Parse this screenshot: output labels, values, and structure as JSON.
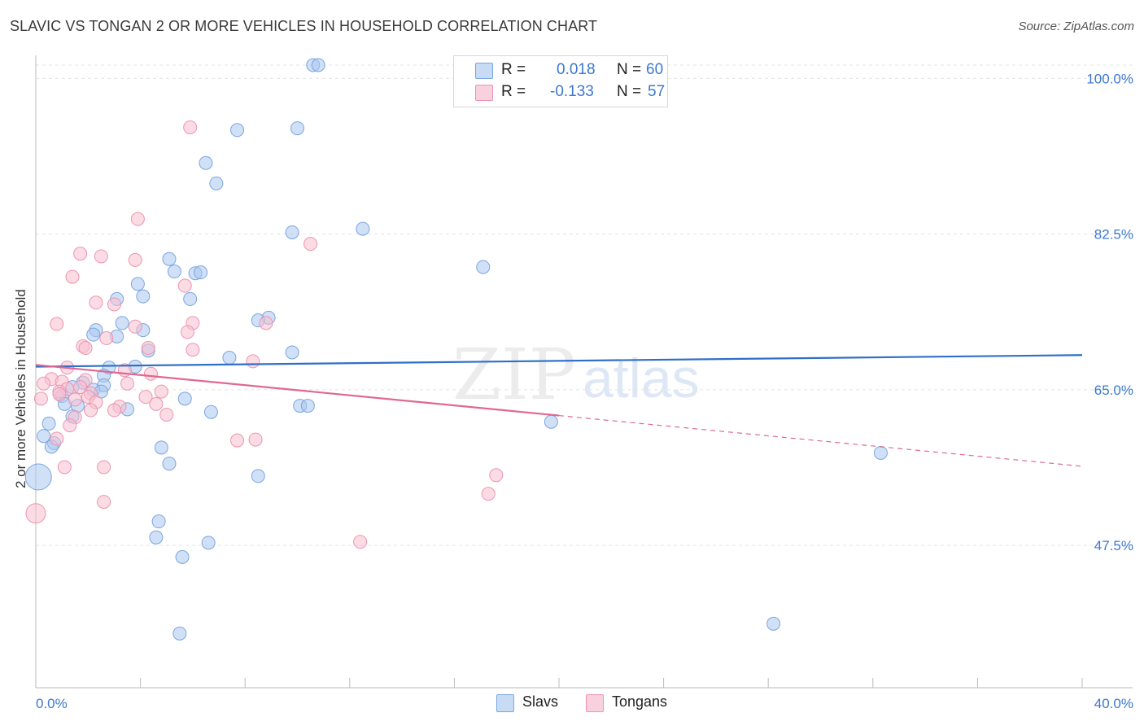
{
  "title": "SLAVIC VS TONGAN 2 OR MORE VEHICLES IN HOUSEHOLD CORRELATION CHART",
  "source": "Source: ZipAtlas.com",
  "watermark": {
    "zip": "ZIP",
    "atlas": "atlas"
  },
  "legend_top": {
    "rows": [
      {
        "r_label": "R =",
        "r_value": "0.018",
        "n_label": "N =",
        "n_value": "60",
        "color": "#a9c7ee"
      },
      {
        "r_label": "R =",
        "r_value": "-0.133",
        "n_label": "N =",
        "n_value": "57",
        "color": "#f5b8cb"
      }
    ]
  },
  "legend_bottom": [
    {
      "label": "Slavs",
      "color": "#a9c7ee"
    },
    {
      "label": "Tongans",
      "color": "#f5b8cb"
    }
  ],
  "colors": {
    "slavs_fill": "#a9c7ee",
    "slavs_stroke": "#7aa6e0",
    "slavs_line": "#2e6fc9",
    "tongans_fill": "#f7bfd0",
    "tongans_stroke": "#ee94b1",
    "tongans_line": "#e06890",
    "axis_label": "#3b78d0",
    "grid": "#e3e3e3"
  },
  "chart_data": {
    "type": "scatter",
    "title": "SLAVIC VS TONGAN 2 OR MORE VEHICLES IN HOUSEHOLD CORRELATION CHART",
    "xlabel": "",
    "ylabel": "2 or more Vehicles in Household",
    "xlim": [
      0,
      40
    ],
    "ylim": [
      31.5,
      101.5
    ],
    "x_tick_labels": [
      {
        "value": 0,
        "label": "0.0%"
      },
      {
        "value": 40,
        "label": "40.0%"
      }
    ],
    "y_tick_labels": [
      {
        "value": 100,
        "label": "100.0%"
      },
      {
        "value": 82.5,
        "label": "82.5%"
      },
      {
        "value": 65,
        "label": "65.0%"
      },
      {
        "value": 47.5,
        "label": "47.5%"
      }
    ],
    "grid": true,
    "series": [
      {
        "name": "Slavs",
        "R": 0.018,
        "N": 60,
        "trend": {
          "x0": 0,
          "y0": 67.6,
          "x1": 40,
          "y1": 68.9
        },
        "points": [
          [
            10.6,
            101.5
          ],
          [
            10.8,
            101.5
          ],
          [
            7.7,
            94.2
          ],
          [
            10.0,
            94.4
          ],
          [
            6.5,
            90.5
          ],
          [
            6.9,
            88.2
          ],
          [
            12.5,
            83.1
          ],
          [
            9.8,
            82.7
          ],
          [
            17.1,
            78.8
          ],
          [
            5.1,
            79.7
          ],
          [
            5.3,
            78.3
          ],
          [
            6.1,
            78.1
          ],
          [
            6.3,
            78.2
          ],
          [
            3.9,
            76.9
          ],
          [
            4.1,
            75.5
          ],
          [
            3.1,
            75.2
          ],
          [
            5.9,
            75.2
          ],
          [
            8.9,
            73.1
          ],
          [
            8.5,
            72.8
          ],
          [
            3.3,
            72.5
          ],
          [
            2.3,
            71.7
          ],
          [
            4.1,
            71.7
          ],
          [
            2.2,
            71.2
          ],
          [
            3.1,
            71.0
          ],
          [
            4.3,
            69.4
          ],
          [
            9.8,
            69.2
          ],
          [
            7.4,
            68.6
          ],
          [
            2.8,
            67.5
          ],
          [
            3.8,
            67.6
          ],
          [
            2.6,
            66.6
          ],
          [
            1.8,
            65.8
          ],
          [
            2.6,
            65.5
          ],
          [
            1.4,
            65.3
          ],
          [
            2.2,
            65.0
          ],
          [
            2.5,
            64.8
          ],
          [
            1.0,
            64.3
          ],
          [
            5.7,
            64.0
          ],
          [
            1.1,
            63.4
          ],
          [
            1.6,
            63.2
          ],
          [
            3.5,
            62.8
          ],
          [
            10.1,
            63.2
          ],
          [
            10.4,
            63.2
          ],
          [
            6.7,
            62.5
          ],
          [
            1.4,
            62.0
          ],
          [
            19.7,
            61.4
          ],
          [
            0.5,
            61.2
          ],
          [
            0.3,
            59.8
          ],
          [
            0.7,
            59.0
          ],
          [
            0.6,
            58.6
          ],
          [
            4.8,
            58.5
          ],
          [
            32.3,
            57.9
          ],
          [
            5.1,
            56.7
          ],
          [
            8.5,
            55.3
          ],
          [
            0.1,
            55.2
          ],
          [
            4.7,
            50.2
          ],
          [
            4.6,
            48.4
          ],
          [
            6.6,
            47.8
          ],
          [
            5.6,
            46.2
          ],
          [
            28.2,
            38.7
          ],
          [
            5.5,
            37.6
          ]
        ],
        "radii": [
          8,
          8,
          8,
          8,
          8,
          8,
          8,
          8,
          8,
          8,
          8,
          8,
          8,
          8,
          8,
          8,
          8,
          8,
          8,
          8,
          8,
          8,
          8,
          8,
          8,
          8,
          8,
          8,
          8,
          8,
          8,
          8,
          8,
          8,
          8,
          8,
          8,
          8,
          8,
          8,
          8,
          8,
          8,
          8,
          8,
          8,
          8,
          8,
          8,
          8,
          8,
          8,
          8,
          16,
          8,
          8,
          8,
          8,
          8,
          8
        ]
      },
      {
        "name": "Tongans",
        "R": -0.133,
        "N": 57,
        "trend": {
          "x0": 0,
          "y0": 67.8,
          "x1": 20,
          "y1": 62.1,
          "dashed_to": {
            "x": 40,
            "y": 56.4
          }
        },
        "points": [
          [
            5.9,
            94.5
          ],
          [
            3.9,
            84.2
          ],
          [
            10.5,
            81.4
          ],
          [
            1.7,
            80.3
          ],
          [
            2.5,
            80.0
          ],
          [
            3.8,
            79.6
          ],
          [
            1.4,
            77.7
          ],
          [
            5.7,
            76.7
          ],
          [
            2.3,
            74.8
          ],
          [
            3.0,
            74.6
          ],
          [
            8.8,
            72.5
          ],
          [
            0.8,
            72.4
          ],
          [
            6.0,
            72.5
          ],
          [
            3.8,
            72.1
          ],
          [
            5.8,
            71.5
          ],
          [
            2.7,
            70.8
          ],
          [
            1.8,
            69.9
          ],
          [
            1.9,
            69.7
          ],
          [
            4.3,
            69.7
          ],
          [
            6.0,
            69.5
          ],
          [
            8.3,
            68.2
          ],
          [
            1.2,
            67.5
          ],
          [
            4.4,
            66.8
          ],
          [
            3.4,
            67.2
          ],
          [
            0.6,
            66.2
          ],
          [
            1.0,
            65.9
          ],
          [
            1.9,
            66.1
          ],
          [
            3.5,
            65.7
          ],
          [
            0.3,
            65.7
          ],
          [
            1.7,
            65.3
          ],
          [
            1.2,
            65.1
          ],
          [
            0.9,
            64.8
          ],
          [
            4.8,
            64.8
          ],
          [
            2.1,
            64.6
          ],
          [
            0.9,
            64.5
          ],
          [
            4.2,
            64.2
          ],
          [
            2.0,
            64.2
          ],
          [
            0.2,
            64.0
          ],
          [
            1.5,
            63.9
          ],
          [
            2.3,
            63.6
          ],
          [
            4.6,
            63.4
          ],
          [
            3.2,
            63.1
          ],
          [
            2.1,
            62.7
          ],
          [
            5.0,
            62.2
          ],
          [
            1.5,
            61.9
          ],
          [
            1.3,
            61.0
          ],
          [
            7.7,
            59.3
          ],
          [
            8.4,
            59.4
          ],
          [
            0.8,
            59.5
          ],
          [
            1.1,
            56.3
          ],
          [
            2.6,
            56.3
          ],
          [
            17.6,
            55.4
          ],
          [
            17.3,
            53.3
          ],
          [
            2.6,
            52.4
          ],
          [
            0.0,
            51.1
          ],
          [
            12.4,
            47.9
          ],
          [
            3.0,
            62.7
          ]
        ],
        "radii": [
          8,
          8,
          8,
          8,
          8,
          8,
          8,
          8,
          8,
          8,
          8,
          8,
          8,
          8,
          8,
          8,
          8,
          8,
          8,
          8,
          8,
          8,
          8,
          8,
          8,
          8,
          8,
          8,
          8,
          8,
          8,
          8,
          8,
          8,
          8,
          8,
          8,
          8,
          8,
          8,
          8,
          8,
          8,
          8,
          8,
          8,
          8,
          8,
          8,
          8,
          8,
          8,
          8,
          8,
          12,
          8,
          8
        ]
      }
    ]
  }
}
